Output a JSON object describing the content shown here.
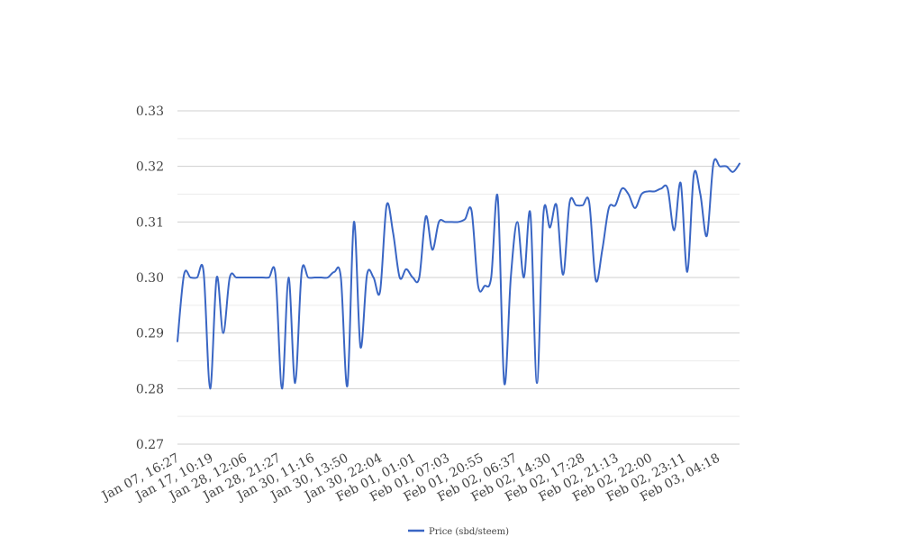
{
  "chart_data": {
    "type": "line",
    "title": "",
    "xlabel": "",
    "ylabel": "",
    "ylim": [
      0.27,
      0.33
    ],
    "y_ticks": [
      "0.27",
      "0.28",
      "0.29",
      "0.30",
      "0.31",
      "0.32",
      "0.33"
    ],
    "x_tick_labels": [
      "Jan 07, 16:27",
      "Jan 17, 10:19",
      "Jan 28, 12:06",
      "Jan 28, 21:27",
      "Jan 30, 11:16",
      "Jan 30, 13:50",
      "Jan 30, 22:04",
      "Feb 01, 01:01",
      "Feb 01, 07:03",
      "Feb 01, 20:55",
      "Feb 02, 06:37",
      "Feb 02, 14:30",
      "Feb 02, 17:28",
      "Feb 02, 21:13",
      "Feb 02, 22:00",
      "Feb 02, 23:11",
      "Feb 03, 04:18"
    ],
    "grid": true,
    "legend_position": "bottom",
    "colors": {
      "line": "#3a66c4",
      "grid_major": "#cfcfcf",
      "grid_minor": "#ececec",
      "text": "#444444"
    },
    "series": [
      {
        "name": "Price (sbd/steem)",
        "values": [
          0.2885,
          0.3005,
          0.3,
          0.3,
          0.301,
          0.28,
          0.3,
          0.29,
          0.3,
          0.3,
          0.3,
          0.3,
          0.3,
          0.3,
          0.3,
          0.3005,
          0.28,
          0.3,
          0.281,
          0.301,
          0.3,
          0.3,
          0.3,
          0.3,
          0.301,
          0.3,
          0.2805,
          0.31,
          0.2875,
          0.3005,
          0.3,
          0.2975,
          0.313,
          0.308,
          0.3,
          0.3015,
          0.3,
          0.3,
          0.311,
          0.305,
          0.31,
          0.31,
          0.31,
          0.31,
          0.3105,
          0.312,
          0.2985,
          0.2985,
          0.3,
          0.3145,
          0.281,
          0.3,
          0.31,
          0.3,
          0.3115,
          0.281,
          0.3115,
          0.309,
          0.313,
          0.3005,
          0.3135,
          0.313,
          0.313,
          0.3135,
          0.2995,
          0.305,
          0.3125,
          0.313,
          0.316,
          0.315,
          0.3125,
          0.315,
          0.3155,
          0.3155,
          0.316,
          0.316,
          0.3085,
          0.317,
          0.301,
          0.3185,
          0.315,
          0.3075,
          0.3205,
          0.32,
          0.32,
          0.319,
          0.3205
        ]
      }
    ]
  }
}
